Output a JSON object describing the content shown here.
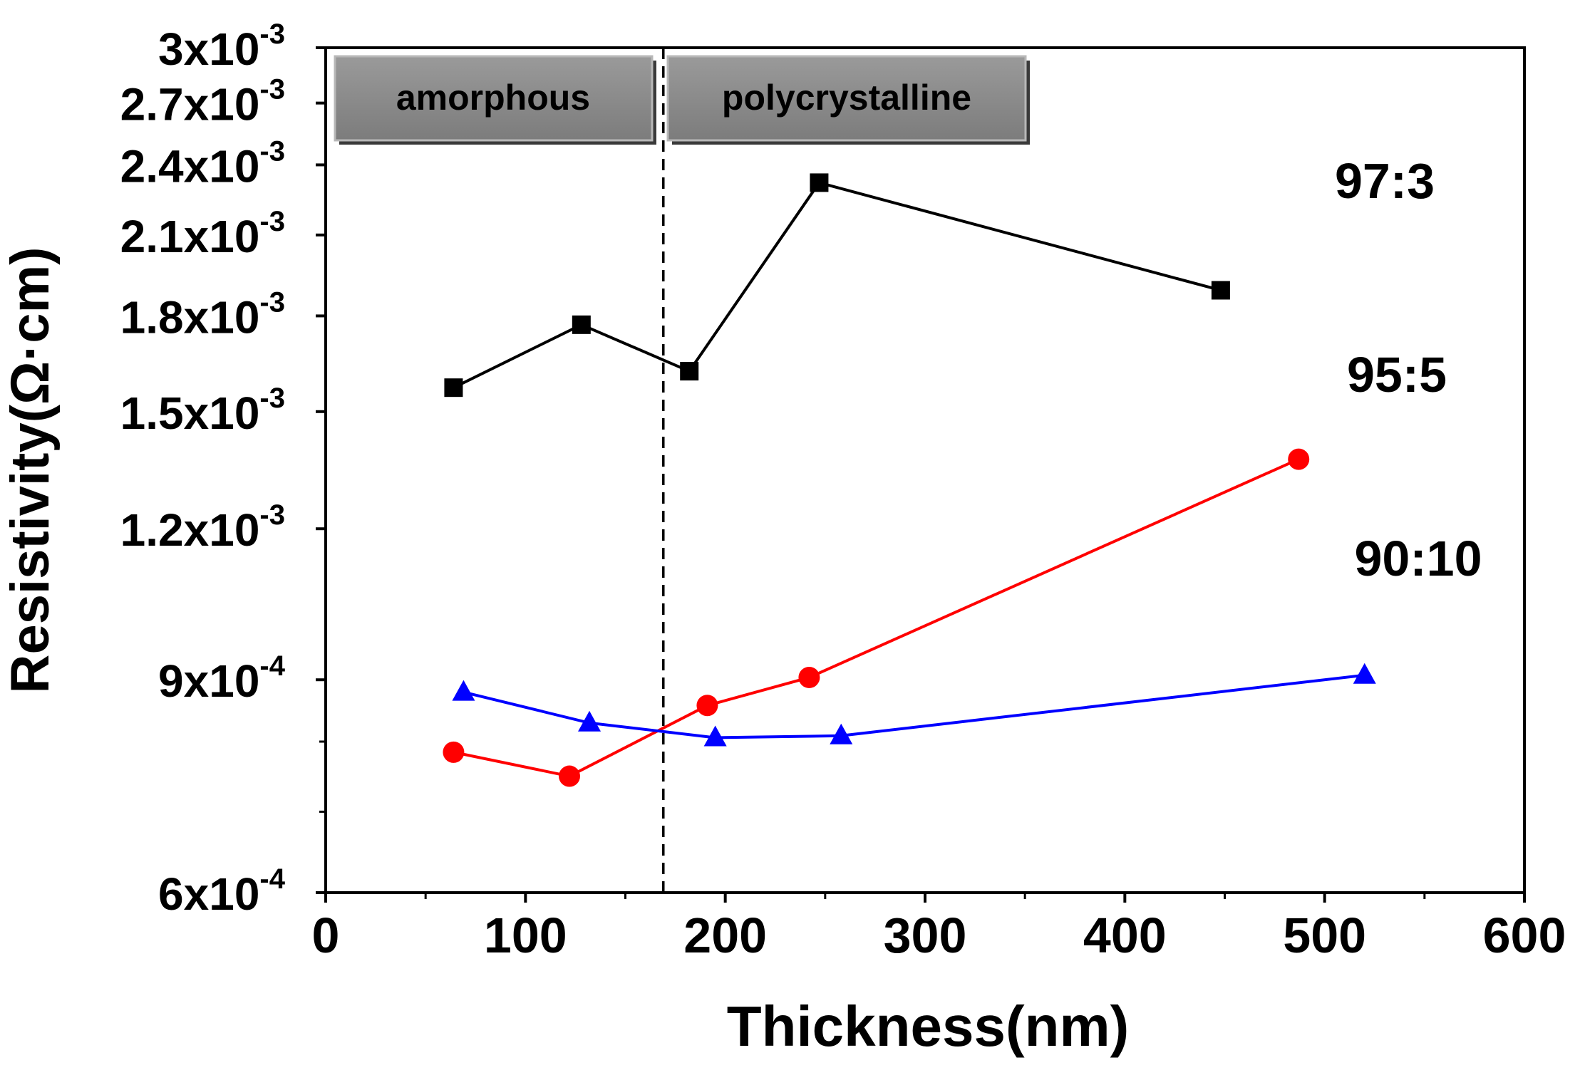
{
  "chart_data": {
    "type": "line",
    "title": "",
    "xlabel": "Thickness(nm)",
    "ylabel": "Resistivity(Ω·cm)",
    "xlim": [
      0,
      600
    ],
    "ylim": [
      0.0006,
      0.003
    ],
    "y_scale": "log",
    "grid": false,
    "x_ticks": [
      {
        "value": 0,
        "label": "0"
      },
      {
        "value": 100,
        "label": "100"
      },
      {
        "value": 200,
        "label": "200"
      },
      {
        "value": 300,
        "label": "300"
      },
      {
        "value": 400,
        "label": "400"
      },
      {
        "value": 500,
        "label": "500"
      },
      {
        "value": 600,
        "label": "600"
      }
    ],
    "y_ticks": [
      {
        "value": 0.0006,
        "mantissa": "6x10",
        "exponent": "-4"
      },
      {
        "value": 0.0009,
        "mantissa": "9x10",
        "exponent": "-4"
      },
      {
        "value": 0.0012,
        "mantissa": "1.2x10",
        "exponent": "-3"
      },
      {
        "value": 0.0015,
        "mantissa": "1.5x10",
        "exponent": "-3"
      },
      {
        "value": 0.0018,
        "mantissa": "1.8x10",
        "exponent": "-3"
      },
      {
        "value": 0.0021,
        "mantissa": "2.1x10",
        "exponent": "-3"
      },
      {
        "value": 0.0024,
        "mantissa": "2.4x10",
        "exponent": "-3"
      },
      {
        "value": 0.0027,
        "mantissa": "2.7x10",
        "exponent": "-3"
      },
      {
        "value": 0.003,
        "mantissa": "3x10",
        "exponent": "-3"
      }
    ],
    "series": [
      {
        "name": "97:3",
        "color": "#000000",
        "marker": "square",
        "points": [
          {
            "x": 64,
            "y": 0.00157
          },
          {
            "x": 128,
            "y": 0.00177
          },
          {
            "x": 182,
            "y": 0.00162
          },
          {
            "x": 247,
            "y": 0.00232
          },
          {
            "x": 448,
            "y": 0.00189
          }
        ]
      },
      {
        "name": "95:5",
        "color": "#ff0000",
        "marker": "circle",
        "points": [
          {
            "x": 64,
            "y": 0.000784
          },
          {
            "x": 122,
            "y": 0.000749
          },
          {
            "x": 191,
            "y": 0.000857
          },
          {
            "x": 242,
            "y": 0.000904
          },
          {
            "x": 487,
            "y": 0.00137
          }
        ]
      },
      {
        "name": "90:10",
        "color": "#0000ff",
        "marker": "triangle",
        "points": [
          {
            "x": 69,
            "y": 0.000879
          },
          {
            "x": 132,
            "y": 0.000829
          },
          {
            "x": 195,
            "y": 0.000806
          },
          {
            "x": 258,
            "y": 0.000809
          },
          {
            "x": 520,
            "y": 0.000908
          }
        ]
      }
    ],
    "series_labels": [
      "97:3",
      "95:5",
      "90:10"
    ],
    "annotations": {
      "region_boundary_x": 169,
      "amorphous_label": "amorphous",
      "polycrystalline_label": "polycrystalline"
    }
  }
}
